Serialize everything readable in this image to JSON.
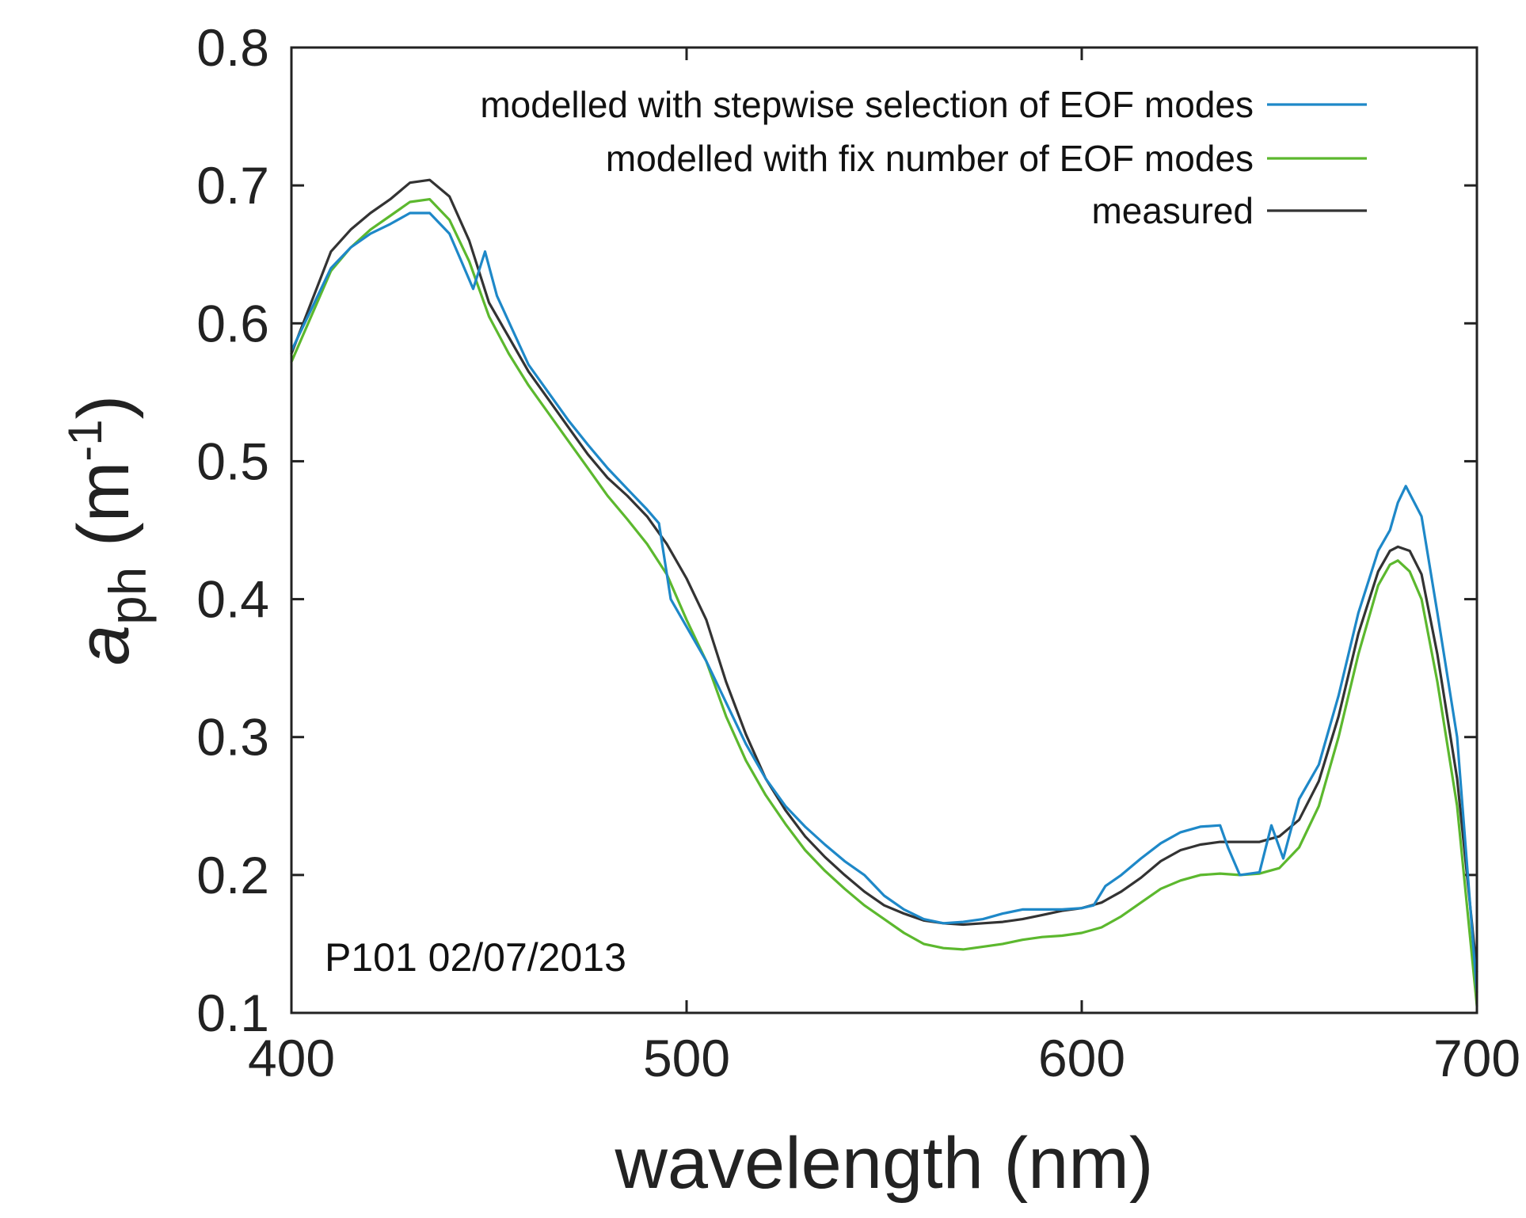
{
  "chart_data": {
    "type": "line",
    "title": "",
    "xlabel": "wavelength (nm)",
    "ylabel_main": "a",
    "ylabel_sub": "ph",
    "ylabel_unit_open": " (m",
    "ylabel_unit_sup": "-1",
    "ylabel_unit_close": ")",
    "xlim": [
      400,
      700
    ],
    "ylim": [
      0.1,
      0.8
    ],
    "x_ticks": [
      400,
      500,
      600,
      700
    ],
    "x_tick_labels": [
      "400",
      "500",
      "600",
      "700"
    ],
    "y_ticks": [
      0.1,
      0.2,
      0.3,
      0.4,
      0.5,
      0.6,
      0.7,
      0.8
    ],
    "y_tick_labels": [
      "0.1",
      "0.2",
      "0.3",
      "0.4",
      "0.5",
      "0.6",
      "0.7",
      "0.8"
    ],
    "grid": false,
    "legend_position": "top-right",
    "annotation": "P101 02/07/2013",
    "series": [
      {
        "name": "modelled with stepwise selection of EOF modes",
        "color": "#1e88c8",
        "points": [
          [
            400,
            0.58
          ],
          [
            405,
            0.61
          ],
          [
            410,
            0.64
          ],
          [
            415,
            0.655
          ],
          [
            420,
            0.665
          ],
          [
            425,
            0.672
          ],
          [
            430,
            0.68
          ],
          [
            435,
            0.68
          ],
          [
            440,
            0.665
          ],
          [
            443,
            0.645
          ],
          [
            446,
            0.625
          ],
          [
            449,
            0.652
          ],
          [
            452,
            0.62
          ],
          [
            456,
            0.595
          ],
          [
            460,
            0.57
          ],
          [
            465,
            0.55
          ],
          [
            470,
            0.53
          ],
          [
            475,
            0.512
          ],
          [
            480,
            0.495
          ],
          [
            485,
            0.48
          ],
          [
            490,
            0.465
          ],
          [
            493,
            0.455
          ],
          [
            496,
            0.4
          ],
          [
            500,
            0.38
          ],
          [
            505,
            0.355
          ],
          [
            510,
            0.325
          ],
          [
            515,
            0.295
          ],
          [
            520,
            0.27
          ],
          [
            525,
            0.25
          ],
          [
            530,
            0.235
          ],
          [
            535,
            0.222
          ],
          [
            540,
            0.21
          ],
          [
            545,
            0.2
          ],
          [
            550,
            0.185
          ],
          [
            555,
            0.175
          ],
          [
            560,
            0.168
          ],
          [
            565,
            0.165
          ],
          [
            570,
            0.166
          ],
          [
            575,
            0.168
          ],
          [
            580,
            0.172
          ],
          [
            585,
            0.175
          ],
          [
            590,
            0.175
          ],
          [
            595,
            0.175
          ],
          [
            600,
            0.176
          ],
          [
            603,
            0.178
          ],
          [
            606,
            0.192
          ],
          [
            610,
            0.2
          ],
          [
            615,
            0.212
          ],
          [
            620,
            0.223
          ],
          [
            625,
            0.231
          ],
          [
            630,
            0.235
          ],
          [
            635,
            0.236
          ],
          [
            637,
            0.22
          ],
          [
            640,
            0.2
          ],
          [
            645,
            0.202
          ],
          [
            648,
            0.236
          ],
          [
            651,
            0.212
          ],
          [
            655,
            0.255
          ],
          [
            660,
            0.28
          ],
          [
            665,
            0.33
          ],
          [
            670,
            0.39
          ],
          [
            675,
            0.435
          ],
          [
            678,
            0.45
          ],
          [
            680,
            0.47
          ],
          [
            682,
            0.482
          ],
          [
            686,
            0.46
          ],
          [
            690,
            0.39
          ],
          [
            695,
            0.3
          ],
          [
            700,
            0.115
          ]
        ]
      },
      {
        "name": "modelled with fix number of EOF modes",
        "color": "#5cb82e",
        "points": [
          [
            400,
            0.572
          ],
          [
            405,
            0.605
          ],
          [
            410,
            0.638
          ],
          [
            415,
            0.655
          ],
          [
            420,
            0.668
          ],
          [
            425,
            0.678
          ],
          [
            430,
            0.688
          ],
          [
            435,
            0.69
          ],
          [
            440,
            0.675
          ],
          [
            445,
            0.645
          ],
          [
            450,
            0.605
          ],
          [
            455,
            0.578
          ],
          [
            460,
            0.555
          ],
          [
            465,
            0.535
          ],
          [
            470,
            0.515
          ],
          [
            475,
            0.495
          ],
          [
            480,
            0.475
          ],
          [
            485,
            0.458
          ],
          [
            490,
            0.44
          ],
          [
            495,
            0.418
          ],
          [
            500,
            0.385
          ],
          [
            505,
            0.355
          ],
          [
            510,
            0.315
          ],
          [
            515,
            0.283
          ],
          [
            520,
            0.258
          ],
          [
            525,
            0.237
          ],
          [
            530,
            0.218
          ],
          [
            535,
            0.203
          ],
          [
            540,
            0.19
          ],
          [
            545,
            0.178
          ],
          [
            550,
            0.168
          ],
          [
            555,
            0.158
          ],
          [
            560,
            0.15
          ],
          [
            565,
            0.147
          ],
          [
            570,
            0.146
          ],
          [
            575,
            0.148
          ],
          [
            580,
            0.15
          ],
          [
            585,
            0.153
          ],
          [
            590,
            0.155
          ],
          [
            595,
            0.156
          ],
          [
            600,
            0.158
          ],
          [
            605,
            0.162
          ],
          [
            610,
            0.17
          ],
          [
            615,
            0.18
          ],
          [
            620,
            0.19
          ],
          [
            625,
            0.196
          ],
          [
            630,
            0.2
          ],
          [
            635,
            0.201
          ],
          [
            640,
            0.2
          ],
          [
            645,
            0.201
          ],
          [
            650,
            0.205
          ],
          [
            655,
            0.22
          ],
          [
            660,
            0.25
          ],
          [
            665,
            0.3
          ],
          [
            670,
            0.36
          ],
          [
            675,
            0.41
          ],
          [
            678,
            0.425
          ],
          [
            680,
            0.428
          ],
          [
            683,
            0.42
          ],
          [
            686,
            0.4
          ],
          [
            690,
            0.34
          ],
          [
            695,
            0.25
          ],
          [
            700,
            0.105
          ]
        ]
      },
      {
        "name": "measured",
        "color": "#333333",
        "points": [
          [
            400,
            0.578
          ],
          [
            405,
            0.615
          ],
          [
            410,
            0.652
          ],
          [
            415,
            0.668
          ],
          [
            420,
            0.68
          ],
          [
            425,
            0.69
          ],
          [
            430,
            0.702
          ],
          [
            435,
            0.704
          ],
          [
            440,
            0.692
          ],
          [
            445,
            0.66
          ],
          [
            450,
            0.615
          ],
          [
            455,
            0.59
          ],
          [
            460,
            0.565
          ],
          [
            465,
            0.545
          ],
          [
            470,
            0.525
          ],
          [
            475,
            0.505
          ],
          [
            480,
            0.488
          ],
          [
            485,
            0.475
          ],
          [
            490,
            0.46
          ],
          [
            495,
            0.44
          ],
          [
            500,
            0.415
          ],
          [
            505,
            0.385
          ],
          [
            510,
            0.34
          ],
          [
            515,
            0.302
          ],
          [
            520,
            0.27
          ],
          [
            525,
            0.247
          ],
          [
            530,
            0.228
          ],
          [
            535,
            0.213
          ],
          [
            540,
            0.2
          ],
          [
            545,
            0.188
          ],
          [
            550,
            0.178
          ],
          [
            555,
            0.172
          ],
          [
            560,
            0.167
          ],
          [
            565,
            0.165
          ],
          [
            570,
            0.164
          ],
          [
            575,
            0.165
          ],
          [
            580,
            0.166
          ],
          [
            585,
            0.168
          ],
          [
            590,
            0.171
          ],
          [
            595,
            0.174
          ],
          [
            600,
            0.176
          ],
          [
            605,
            0.18
          ],
          [
            610,
            0.188
          ],
          [
            615,
            0.198
          ],
          [
            620,
            0.21
          ],
          [
            625,
            0.218
          ],
          [
            630,
            0.222
          ],
          [
            635,
            0.224
          ],
          [
            640,
            0.224
          ],
          [
            645,
            0.224
          ],
          [
            650,
            0.228
          ],
          [
            655,
            0.24
          ],
          [
            660,
            0.268
          ],
          [
            665,
            0.315
          ],
          [
            670,
            0.375
          ],
          [
            675,
            0.42
          ],
          [
            678,
            0.435
          ],
          [
            680,
            0.438
          ],
          [
            683,
            0.435
          ],
          [
            686,
            0.418
          ],
          [
            690,
            0.36
          ],
          [
            695,
            0.27
          ],
          [
            700,
            0.13
          ]
        ]
      }
    ]
  }
}
